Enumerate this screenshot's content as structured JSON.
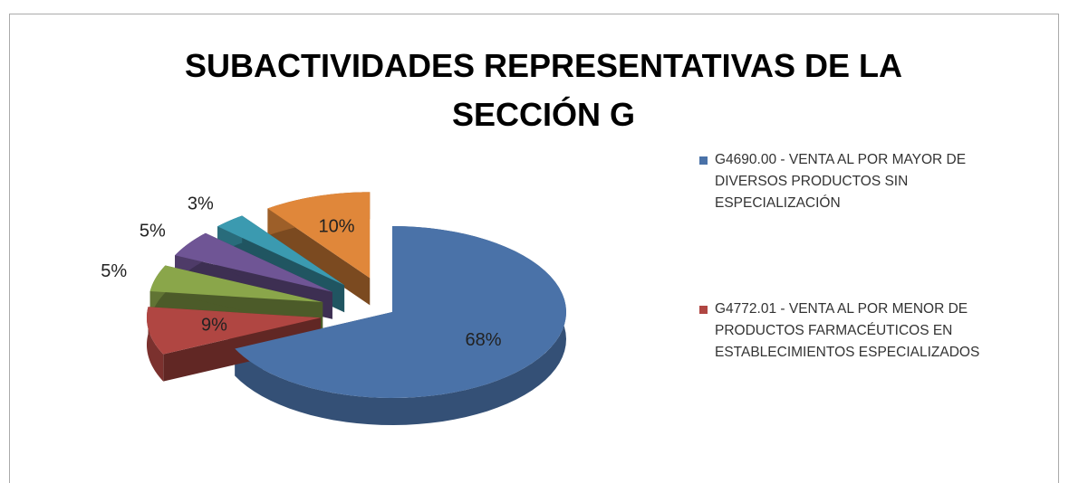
{
  "chart_data": {
    "type": "pie3d",
    "title": "SUBACTIVIDADES REPRESENTATIVAS DE LA SECCIÓN G",
    "categories": [
      "G4690.00 - VENTA AL POR MAYOR DE DIVERSOS PRODUCTOS SIN ESPECIALIZACIÓN",
      "G4772.01 - VENTA AL POR MENOR DE PRODUCTOS FARMACÉUTICOS EN ESTABLECIMIENTOS ESPECIALIZADOS",
      null,
      null,
      null,
      null
    ],
    "values": [
      68,
      9,
      5,
      5,
      3,
      10
    ],
    "value_labels": [
      "68%",
      "9%",
      "5%",
      "5%",
      "3%",
      "10%"
    ],
    "colors": [
      "#4a72a8",
      "#b04642",
      "#8aa64a",
      "#6f5595",
      "#3b9ab0",
      "#e0873a"
    ],
    "legend": "right"
  }
}
